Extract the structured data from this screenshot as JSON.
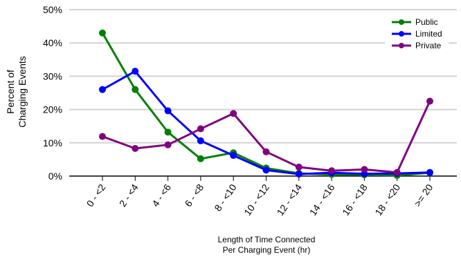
{
  "chart_data": {
    "type": "line",
    "categories": [
      "0 - <2",
      "2 - <4",
      "4 - <6",
      "6 - <8",
      "8 - <10",
      "10 - <12",
      "12 - <14",
      "14 - <16",
      "16 - <18",
      "18 - <20",
      ">= 20"
    ],
    "series": [
      {
        "name": "Public",
        "color": "#008000",
        "values": [
          43.0,
          26.0,
          13.2,
          5.2,
          7.0,
          2.4,
          0.8,
          0.5,
          0.4,
          0.2,
          1.0
        ]
      },
      {
        "name": "Limited",
        "color": "#0000ff",
        "values": [
          26.0,
          31.5,
          19.6,
          10.6,
          6.2,
          1.8,
          0.6,
          1.0,
          0.7,
          0.8,
          1.1
        ]
      },
      {
        "name": "Private",
        "color": "#800080",
        "values": [
          11.9,
          8.3,
          9.4,
          14.2,
          18.8,
          7.3,
          2.7,
          1.6,
          2.0,
          1.1,
          22.5
        ]
      }
    ],
    "ylim": [
      0,
      50
    ],
    "yticks": [
      "0%",
      "10%",
      "20%",
      "30%",
      "40%",
      "50%"
    ],
    "ylabel": [
      "Percent of",
      "Charging Events"
    ],
    "xlabel": [
      "Length of Time Connected",
      "Per Charging Event (hr)"
    ],
    "grid": true,
    "legend_position": "top-right"
  }
}
